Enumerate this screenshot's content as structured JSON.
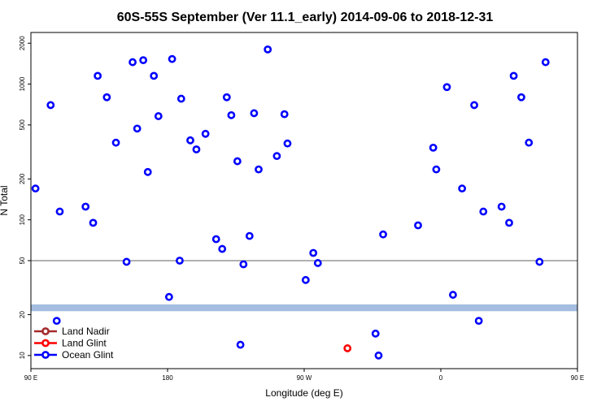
{
  "chart_data": {
    "type": "scatter",
    "title": "60S-55S September (Ver 11.1_early)   2014-09-06 to 2018-12-31",
    "xlabel": "Longitude (deg E)",
    "ylabel": "N Total",
    "xlim": [
      90,
      450
    ],
    "ylim": [
      8,
      2400
    ],
    "yscale": "log",
    "x_ticks": [
      {
        "value": 90,
        "label": "90 E"
      },
      {
        "value": 180,
        "label": "180"
      },
      {
        "value": 270,
        "label": "90 W"
      },
      {
        "value": 360,
        "label": "0"
      },
      {
        "value": 450,
        "label": "90 E"
      },
      {
        "value": 540,
        "label": "180"
      }
    ],
    "y_ticks": [
      {
        "value": 10,
        "label": "10"
      },
      {
        "value": 20,
        "label": "20"
      },
      {
        "value": 50,
        "label": "50"
      },
      {
        "value": 100,
        "label": "100"
      },
      {
        "value": 200,
        "label": "200"
      },
      {
        "value": 500,
        "label": "500"
      },
      {
        "value": 1000,
        "label": "1000"
      },
      {
        "value": 2000,
        "label": "2000"
      }
    ],
    "reference_line": {
      "y": 50,
      "color": "#808080"
    },
    "band": {
      "y_from": 21.2,
      "y_to": 23.8,
      "color": "#a4bde0"
    },
    "legend": {
      "position": "bottom-left",
      "entries": [
        {
          "label": "Land Nadir",
          "color": "#a52a2a"
        },
        {
          "label": "Land Glint",
          "color": "#ff0000"
        },
        {
          "label": "Ocean Glint",
          "color": "#0000ff"
        }
      ]
    },
    "series": [
      {
        "name": "Land Nadir",
        "color": "#a52a2a",
        "points": []
      },
      {
        "name": "Land Glint",
        "color": "#ff0000",
        "points": [
          [
            298.5,
            11.3
          ]
        ]
      },
      {
        "name": "Ocean Glint",
        "color": "#0000ff",
        "points": [
          [
            93,
            170
          ],
          [
            103,
            700
          ],
          [
            107,
            18
          ],
          [
            109,
            115
          ],
          [
            126,
            125
          ],
          [
            131,
            95
          ],
          [
            134,
            1150
          ],
          [
            140,
            800
          ],
          [
            146,
            370
          ],
          [
            153,
            49
          ],
          [
            157,
            1450
          ],
          [
            160,
            470
          ],
          [
            164,
            1500
          ],
          [
            167,
            225
          ],
          [
            171,
            1150
          ],
          [
            174,
            580
          ],
          [
            181,
            27
          ],
          [
            183,
            1530
          ],
          [
            188,
            50
          ],
          [
            189,
            780
          ],
          [
            195,
            385
          ],
          [
            199,
            330
          ],
          [
            205,
            430
          ],
          [
            212,
            72
          ],
          [
            216,
            61
          ],
          [
            219,
            800
          ],
          [
            222,
            590
          ],
          [
            226,
            270
          ],
          [
            228,
            12
          ],
          [
            230,
            47
          ],
          [
            234,
            76
          ],
          [
            237,
            610
          ],
          [
            240,
            235
          ],
          [
            246,
            1800
          ],
          [
            252,
            295
          ],
          [
            257,
            600
          ],
          [
            259,
            365
          ],
          [
            271,
            36
          ],
          [
            276,
            57
          ],
          [
            279,
            48
          ],
          [
            317,
            14.5
          ],
          [
            319,
            10
          ],
          [
            322,
            78
          ],
          [
            345,
            91
          ],
          [
            355,
            340
          ],
          [
            357,
            235
          ],
          [
            364,
            950
          ],
          [
            368,
            28
          ],
          [
            374,
            170
          ],
          [
            382,
            700
          ],
          [
            385,
            18
          ],
          [
            388,
            115
          ],
          [
            400,
            125
          ],
          [
            405,
            95
          ],
          [
            408,
            1150
          ],
          [
            413,
            800
          ],
          [
            418,
            370
          ],
          [
            425,
            49
          ],
          [
            429,
            1450
          ]
        ]
      }
    ]
  }
}
